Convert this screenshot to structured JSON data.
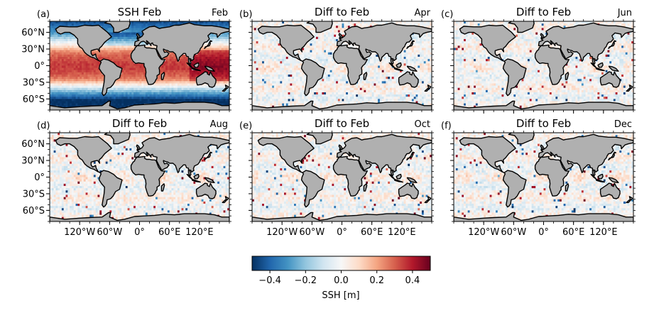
{
  "chart_data": {
    "type": "heatmap",
    "grid": "2x3",
    "projection": "equirectangular",
    "colormap": "RdBu_r",
    "land_color": "#b0b0b0",
    "coastline_color": "#000000",
    "lat_ticks": [
      "60°N",
      "30°N",
      "0°",
      "30°S",
      "60°S"
    ],
    "lat_tick_values": [
      60,
      30,
      0,
      -30,
      -60
    ],
    "lon_ticks": [
      "120°W",
      "60°W",
      "0°",
      "60°E",
      "120°E"
    ],
    "lon_tick_values": [
      -120,
      -60,
      0,
      60,
      120
    ],
    "lon_range": [
      -180,
      180
    ],
    "lat_range": [
      -80,
      80
    ],
    "panels": [
      {
        "letter": "(a)",
        "title": "SSH Feb",
        "month": "Feb",
        "kind": "absolute"
      },
      {
        "letter": "(b)",
        "title": "Diff to Feb",
        "month": "Apr",
        "kind": "difference"
      },
      {
        "letter": "(c)",
        "title": "Diff to Feb",
        "month": "Jun",
        "kind": "difference"
      },
      {
        "letter": "(d)",
        "title": "Diff to Feb",
        "month": "Aug",
        "kind": "difference"
      },
      {
        "letter": "(e)",
        "title": "Diff to Feb",
        "month": "Oct",
        "kind": "difference"
      },
      {
        "letter": "(f)",
        "title": "Diff to Feb",
        "month": "Dec",
        "kind": "difference"
      }
    ],
    "colorbar": {
      "label": "SSH [m]",
      "range": [
        -0.5,
        0.5
      ],
      "ticks": [
        -0.4,
        -0.2,
        0.0,
        0.2,
        0.4
      ],
      "tick_labels": [
        "−0.4",
        "−0.2",
        "0.0",
        "0.2",
        "0.4"
      ],
      "stops": [
        "#053061",
        "#2166ac",
        "#4393c3",
        "#92c5de",
        "#d1e5f0",
        "#f7f7f7",
        "#fddbc7",
        "#f4a582",
        "#d6604d",
        "#b2182b",
        "#67001f"
      ]
    }
  }
}
